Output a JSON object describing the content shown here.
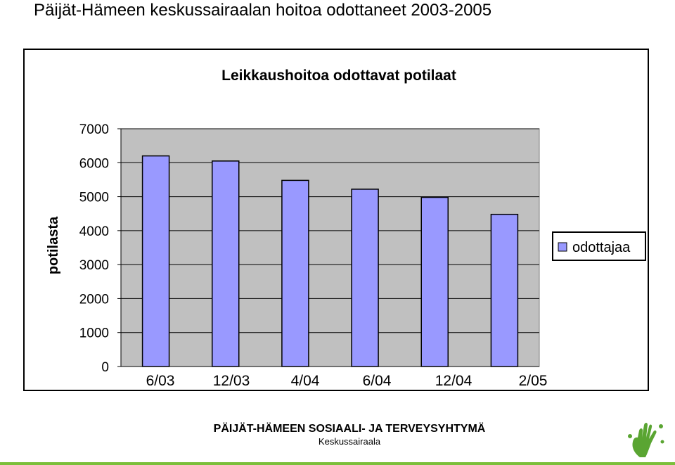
{
  "page": {
    "title": "Päijät-Hämeen keskussairaalan hoitoa odottaneet 2003-2005"
  },
  "footer": {
    "organization": "PÄIJÄT-HÄMEEN SOSIAALI- JA TERVEYSYHTYMÄ",
    "unit": "Keskussairaala"
  },
  "logo": {
    "icon": "green-hand-logo-icon",
    "color": "#5aa532"
  },
  "colors": {
    "bar_fill": "#9999ff",
    "plot_background": "#c0c0c0",
    "accent_line": "#7bbf3a"
  },
  "chart_data": {
    "type": "bar",
    "title": "Leikkaushoitoa odottavat potilaat",
    "ylabel": "potilasta",
    "xlabel": "",
    "categories": [
      "6/03",
      "12/03",
      "4/04",
      "6/04",
      "12/04",
      "2/05"
    ],
    "series": [
      {
        "name": "odottajaa",
        "values": [
          6200,
          6050,
          5480,
          5220,
          4980,
          4480
        ]
      }
    ],
    "ylim": [
      0,
      7000
    ],
    "yticks": [
      "0",
      "1000",
      "2000",
      "3000",
      "4000",
      "5000",
      "6000",
      "7000"
    ],
    "grid": true,
    "legend_position": "right"
  }
}
